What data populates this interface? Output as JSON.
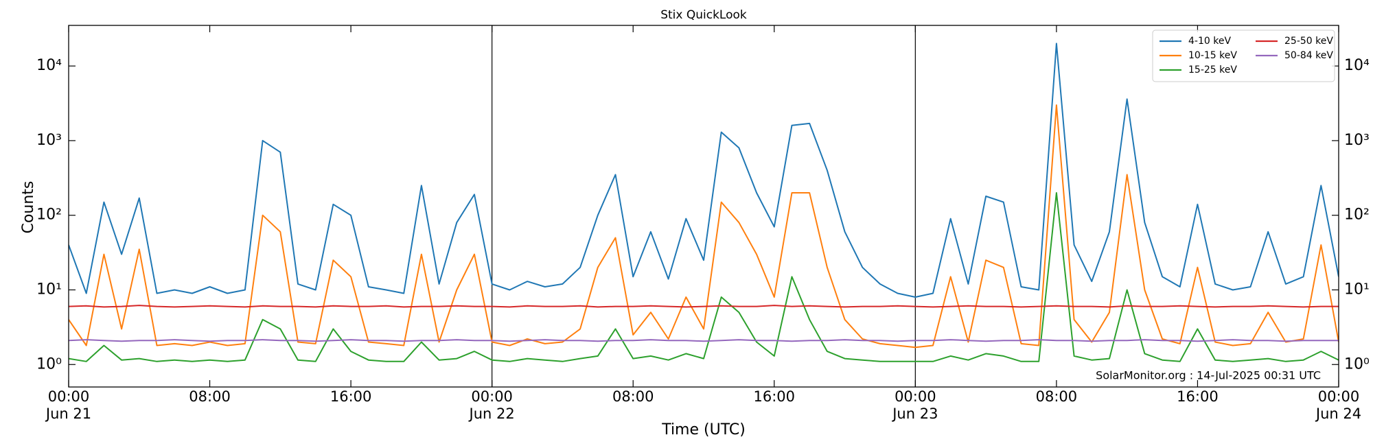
{
  "chart_data": {
    "type": "line",
    "title": "Stix QuickLook",
    "xlabel": "Time (UTC)",
    "ylabel": "Counts",
    "annotation": "SolarMonitor.org : 14-Jul-2025 00:31 UTC",
    "yscale": "log",
    "ylim": [
      0.5,
      35000
    ],
    "yticks": [
      {
        "value": 1,
        "label": "10⁰"
      },
      {
        "value": 10,
        "label": "10¹"
      },
      {
        "value": 100,
        "label": "10²"
      },
      {
        "value": 1000,
        "label": "10³"
      },
      {
        "value": 10000,
        "label": "10⁴"
      }
    ],
    "legend": "upper right",
    "legend_columns": 2,
    "x": [
      "Jun 21 00:00",
      "Jun 21 01:00",
      "Jun 21 02:00",
      "Jun 21 03:00",
      "Jun 21 04:00",
      "Jun 21 05:00",
      "Jun 21 06:00",
      "Jun 21 07:00",
      "Jun 21 08:00",
      "Jun 21 09:00",
      "Jun 21 10:00",
      "Jun 21 11:00",
      "Jun 21 12:00",
      "Jun 21 13:00",
      "Jun 21 14:00",
      "Jun 21 15:00",
      "Jun 21 16:00",
      "Jun 21 17:00",
      "Jun 21 18:00",
      "Jun 21 19:00",
      "Jun 21 20:00",
      "Jun 21 21:00",
      "Jun 21 22:00",
      "Jun 21 23:00",
      "Jun 22 00:00",
      "Jun 22 01:00",
      "Jun 22 02:00",
      "Jun 22 03:00",
      "Jun 22 04:00",
      "Jun 22 05:00",
      "Jun 22 06:00",
      "Jun 22 07:00",
      "Jun 22 08:00",
      "Jun 22 09:00",
      "Jun 22 10:00",
      "Jun 22 11:00",
      "Jun 22 12:00",
      "Jun 22 13:00",
      "Jun 22 14:00",
      "Jun 22 15:00",
      "Jun 22 16:00",
      "Jun 22 17:00",
      "Jun 22 18:00",
      "Jun 22 19:00",
      "Jun 22 20:00",
      "Jun 22 21:00",
      "Jun 22 22:00",
      "Jun 22 23:00",
      "Jun 23 00:00",
      "Jun 23 01:00",
      "Jun 23 02:00",
      "Jun 23 03:00",
      "Jun 23 04:00",
      "Jun 23 05:00",
      "Jun 23 06:00",
      "Jun 23 07:00",
      "Jun 23 08:00",
      "Jun 23 09:00",
      "Jun 23 10:00",
      "Jun 23 11:00",
      "Jun 23 12:00",
      "Jun 23 13:00",
      "Jun 23 14:00",
      "Jun 23 15:00",
      "Jun 23 16:00",
      "Jun 23 17:00",
      "Jun 23 18:00",
      "Jun 23 19:00",
      "Jun 23 20:00",
      "Jun 23 21:00",
      "Jun 23 22:00",
      "Jun 23 23:00",
      "Jun 24 00:00"
    ],
    "xticks": [
      {
        "value": "Jun 21 00:00",
        "label": "00:00\nJun 21"
      },
      {
        "value": "Jun 21 08:00",
        "label": "08:00"
      },
      {
        "value": "Jun 21 16:00",
        "label": "16:00"
      },
      {
        "value": "Jun 22 00:00",
        "label": "00:00\nJun 22"
      },
      {
        "value": "Jun 22 08:00",
        "label": "08:00"
      },
      {
        "value": "Jun 22 16:00",
        "label": "16:00"
      },
      {
        "value": "Jun 23 00:00",
        "label": "00:00\nJun 23"
      },
      {
        "value": "Jun 23 08:00",
        "label": "08:00"
      },
      {
        "value": "Jun 23 16:00",
        "label": "16:00"
      },
      {
        "value": "Jun 24 00:00",
        "label": "00:00\nJun 24"
      }
    ],
    "series": [
      {
        "name": "4-10 keV",
        "color": "#1f77b4",
        "values": [
          40,
          9,
          150,
          30,
          170,
          9,
          10,
          9,
          11,
          9,
          10,
          1000,
          700,
          12,
          10,
          140,
          100,
          11,
          10,
          9,
          250,
          12,
          80,
          190,
          12,
          10,
          13,
          11,
          12,
          20,
          100,
          350,
          15,
          60,
          14,
          90,
          25,
          1300,
          800,
          200,
          70,
          1600,
          1700,
          400,
          60,
          20,
          12,
          9,
          8,
          9,
          90,
          12,
          180,
          150,
          11,
          10,
          20000,
          40,
          13,
          60,
          3600,
          80,
          15,
          11,
          140,
          12,
          10,
          11,
          60,
          12,
          15,
          250,
          15
        ]
      },
      {
        "name": "10-15 keV",
        "color": "#ff7f0e",
        "values": [
          4,
          1.8,
          30,
          3,
          35,
          1.8,
          1.9,
          1.8,
          2,
          1.8,
          1.9,
          100,
          60,
          2,
          1.9,
          25,
          15,
          2,
          1.9,
          1.8,
          30,
          2,
          10,
          30,
          2,
          1.8,
          2.2,
          1.9,
          2,
          3,
          20,
          50,
          2.5,
          5,
          2.2,
          8,
          3,
          150,
          80,
          30,
          8,
          200,
          200,
          20,
          4,
          2.2,
          1.9,
          1.8,
          1.7,
          1.8,
          15,
          2,
          25,
          20,
          1.9,
          1.8,
          3000,
          4,
          2,
          5,
          350,
          10,
          2.2,
          1.9,
          20,
          2,
          1.8,
          1.9,
          5,
          2,
          2.2,
          40,
          2
        ]
      },
      {
        "name": "15-25 keV",
        "color": "#2ca02c",
        "values": [
          1.2,
          1.1,
          1.8,
          1.15,
          1.2,
          1.1,
          1.15,
          1.1,
          1.15,
          1.1,
          1.15,
          4,
          3,
          1.15,
          1.1,
          3,
          1.5,
          1.15,
          1.1,
          1.1,
          2,
          1.15,
          1.2,
          1.5,
          1.15,
          1.1,
          1.2,
          1.15,
          1.1,
          1.2,
          1.3,
          3,
          1.2,
          1.3,
          1.15,
          1.4,
          1.2,
          8,
          5,
          2,
          1.3,
          15,
          4,
          1.5,
          1.2,
          1.15,
          1.1,
          1.1,
          1.1,
          1.1,
          1.3,
          1.15,
          1.4,
          1.3,
          1.1,
          1.1,
          200,
          1.3,
          1.15,
          1.2,
          10,
          1.4,
          1.15,
          1.1,
          3,
          1.15,
          1.1,
          1.15,
          1.2,
          1.1,
          1.15,
          1.5,
          1.15
        ]
      },
      {
        "name": "25-50 keV",
        "color": "#d62728",
        "values": [
          6,
          6.1,
          5.9,
          6,
          6.2,
          6,
          5.9,
          6,
          6.1,
          6,
          5.9,
          6.1,
          6,
          6,
          5.9,
          6.1,
          6,
          6,
          6.1,
          5.9,
          6,
          6,
          6.1,
          6,
          6,
          5.9,
          6.1,
          6,
          6,
          6.1,
          5.9,
          6,
          6,
          6.1,
          6,
          5.9,
          6,
          6.1,
          6,
          6,
          6.2,
          6,
          6.1,
          6,
          5.9,
          6,
          6,
          6.1,
          6,
          5.9,
          6,
          6.1,
          6,
          6,
          5.9,
          6,
          6.1,
          6,
          6,
          5.9,
          6.1,
          6,
          6,
          6.1,
          6,
          5.9,
          6,
          6,
          6.1,
          6,
          5.9,
          6,
          6
        ]
      },
      {
        "name": "50-84 keV",
        "color": "#9467bd",
        "values": [
          2.1,
          2.15,
          2.1,
          2.05,
          2.1,
          2.1,
          2.15,
          2.1,
          2.05,
          2.1,
          2.1,
          2.15,
          2.1,
          2.1,
          2.05,
          2.1,
          2.15,
          2.1,
          2.1,
          2.05,
          2.1,
          2.1,
          2.15,
          2.1,
          2.1,
          2.05,
          2.1,
          2.15,
          2.1,
          2.1,
          2.05,
          2.1,
          2.1,
          2.15,
          2.1,
          2.1,
          2.05,
          2.1,
          2.15,
          2.1,
          2.1,
          2.05,
          2.1,
          2.1,
          2.15,
          2.1,
          2.1,
          2.05,
          2.1,
          2.1,
          2.15,
          2.1,
          2.05,
          2.1,
          2.1,
          2.15,
          2.1,
          2.1,
          2.05,
          2.1,
          2.1,
          2.15,
          2.1,
          2.1,
          2.05,
          2.1,
          2.15,
          2.1,
          2.1,
          2.05,
          2.1,
          2.1,
          2.1
        ]
      }
    ]
  }
}
